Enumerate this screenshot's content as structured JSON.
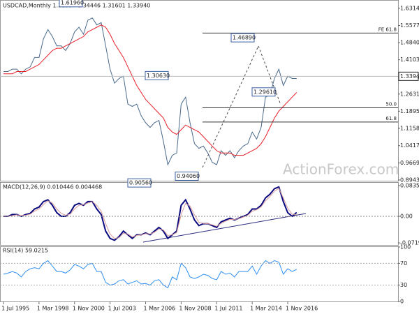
{
  "chart_data": [
    {
      "type": "line",
      "title": "USDCAD,Monthly 1.32357 1.34446 1.31601 1.33940",
      "ylim": [
        0.891,
        1.655
      ],
      "yticks": [
        {
          "value": 1.6314,
          "label": "1.63140"
        },
        {
          "value": 1.5577,
          "label": "1.55770"
        },
        {
          "value": 1.484,
          "label": "1.48400"
        },
        {
          "value": 1.4103,
          "label": "1.41030"
        },
        {
          "value": 1.3366,
          "label": "1.33660"
        },
        {
          "value": 1.2631,
          "label": "1.26310"
        },
        {
          "value": 1.1895,
          "label": "1.18950"
        },
        {
          "value": 1.1158,
          "label": "1.11580"
        },
        {
          "value": 1.0417,
          "label": "1.04170"
        },
        {
          "value": 0.9669,
          "label": "0.96690"
        },
        {
          "value": 0.8943,
          "label": "0.89430"
        }
      ],
      "series": [
        {
          "color": "#4a6a8c",
          "values": [
            1.36,
            1.36,
            1.37,
            1.37,
            1.35,
            1.37,
            1.38,
            1.42,
            1.42,
            1.5,
            1.54,
            1.51,
            1.47,
            1.47,
            1.45,
            1.48,
            1.53,
            1.55,
            1.52,
            1.58,
            1.59,
            1.56,
            1.57,
            1.47,
            1.37,
            1.31,
            1.33,
            1.34,
            1.22,
            1.21,
            1.22,
            1.17,
            1.14,
            1.12,
            1.14,
            1.15,
            1.06,
            0.96,
            1.0,
            1.01,
            1.22,
            1.25,
            1.14,
            1.05,
            1.03,
            1.04,
            1.01,
            0.97,
            0.96,
            1.02,
            1.0,
            1.02,
            0.99,
            1.02,
            1.04,
            1.05,
            1.1,
            1.07,
            1.12,
            1.25,
            1.26,
            1.33,
            1.37,
            1.3,
            1.34,
            1.33,
            1.33
          ]
        },
        {
          "color": "#e8202a",
          "values": [
            1.35,
            1.35,
            1.35,
            1.36,
            1.36,
            1.36,
            1.37,
            1.38,
            1.39,
            1.41,
            1.43,
            1.45,
            1.46,
            1.46,
            1.47,
            1.48,
            1.49,
            1.5,
            1.51,
            1.53,
            1.54,
            1.55,
            1.56,
            1.55,
            1.52,
            1.48,
            1.45,
            1.42,
            1.38,
            1.34,
            1.3,
            1.27,
            1.24,
            1.22,
            1.2,
            1.18,
            1.16,
            1.12,
            1.1,
            1.09,
            1.11,
            1.13,
            1.12,
            1.11,
            1.1,
            1.08,
            1.06,
            1.04,
            1.02,
            1.01,
            1.01,
            1.01,
            1.0,
            1.0,
            1.0,
            1.01,
            1.02,
            1.03,
            1.05,
            1.08,
            1.12,
            1.16,
            1.19,
            1.21,
            1.23,
            1.25,
            1.27
          ]
        }
      ],
      "annotations": [
        {
          "label": "1.61960",
          "value": 1.6196
        },
        {
          "label": "1.30630",
          "value": 1.3063
        },
        {
          "label": "0.90560",
          "value": 0.9056
        },
        {
          "label": "0.94060",
          "value": 0.9406
        },
        {
          "label": "1.46890",
          "value": 1.4689
        },
        {
          "label": "1.29610",
          "value": 1.2961
        }
      ],
      "levels": [
        {
          "name": "FE 61.8",
          "value": 1.525
        },
        {
          "name": "50.0",
          "value": 1.204
        },
        {
          "name": "61.8",
          "value": 1.143
        }
      ],
      "last_price": {
        "label": "1.33940",
        "value": 1.3394
      },
      "watermark": "ActionForex.com"
    },
    {
      "type": "line",
      "title": "MACD(12,26,9) 0.010446 0.004468",
      "ylim": [
        -0.0794,
        0.0909
      ],
      "yticks": [
        {
          "value": 0.083505,
          "label": "0.083505"
        },
        {
          "value": 0,
          "label": "0.00"
        },
        {
          "value": -0.07195,
          "label": "-0.07195"
        }
      ],
      "series": [
        {
          "color": "#0a0a80",
          "values": [
            0.0,
            0.0,
            0.005,
            0.005,
            0.0,
            0.005,
            0.008,
            0.02,
            0.025,
            0.04,
            0.045,
            0.03,
            0.01,
            0.0,
            0.0,
            0.01,
            0.03,
            0.035,
            0.03,
            0.04,
            0.04,
            0.02,
            0.005,
            -0.04,
            -0.06,
            -0.065,
            -0.055,
            -0.04,
            -0.05,
            -0.06,
            -0.05,
            -0.05,
            -0.045,
            -0.05,
            -0.04,
            -0.03,
            -0.04,
            -0.06,
            -0.05,
            -0.04,
            0.03,
            0.045,
            0.02,
            -0.01,
            -0.025,
            -0.02,
            -0.02,
            -0.025,
            -0.03,
            -0.015,
            -0.01,
            -0.005,
            -0.01,
            -0.005,
            0.0,
            0.005,
            0.02,
            0.02,
            0.03,
            0.05,
            0.06,
            0.075,
            0.08,
            0.04,
            0.01,
            0.0,
            0.010446
          ]
        },
        {
          "color": "#d89a9a",
          "values": [
            0.0,
            0.0,
            0.002,
            0.004,
            0.002,
            0.003,
            0.006,
            0.014,
            0.02,
            0.032,
            0.042,
            0.036,
            0.02,
            0.008,
            0.003,
            0.006,
            0.02,
            0.03,
            0.032,
            0.036,
            0.04,
            0.03,
            0.014,
            -0.02,
            -0.048,
            -0.06,
            -0.058,
            -0.046,
            -0.048,
            -0.056,
            -0.052,
            -0.05,
            -0.047,
            -0.048,
            -0.043,
            -0.034,
            -0.037,
            -0.052,
            -0.05,
            -0.044,
            0.005,
            0.035,
            0.028,
            0.004,
            -0.016,
            -0.019,
            -0.02,
            -0.023,
            -0.027,
            -0.019,
            -0.013,
            -0.008,
            -0.009,
            -0.006,
            -0.002,
            0.003,
            0.014,
            0.018,
            0.026,
            0.042,
            0.054,
            0.068,
            0.076,
            0.05,
            0.022,
            0.006,
            0.004468
          ]
        }
      ]
    },
    {
      "type": "line",
      "title": "RSI(14) 59.0215",
      "ylim": [
        0,
        100
      ],
      "yticks": [
        100,
        70,
        30,
        0
      ],
      "levels": [
        70,
        30
      ],
      "categories": [
        "1 Jul 1995",
        null,
        null,
        null,
        null,
        null,
        null,
        null,
        "1 Mar 1998",
        null,
        null,
        null,
        null,
        null,
        null,
        null,
        "1 Nov 2000",
        null,
        null,
        null,
        null,
        null,
        null,
        null,
        "1 Jul 2003",
        null,
        null,
        null,
        null,
        null,
        null,
        null,
        "1 Mar 2006",
        null,
        null,
        null,
        null,
        null,
        null,
        null,
        "1 Nov 2008",
        null,
        null,
        null,
        null,
        null,
        null,
        null,
        "1 Jul 2011",
        null,
        null,
        null,
        null,
        null,
        null,
        null,
        "1 Mar 2014",
        null,
        null,
        null,
        null,
        null,
        null,
        null,
        "1 Nov 2016",
        null,
        null
      ],
      "series": [
        {
          "color": "#2e8ff0",
          "values": [
            50,
            52,
            55,
            52,
            45,
            55,
            60,
            62,
            60,
            70,
            75,
            65,
            55,
            55,
            52,
            58,
            68,
            65,
            60,
            68,
            70,
            55,
            55,
            35,
            30,
            32,
            38,
            40,
            32,
            35,
            38,
            32,
            33,
            30,
            38,
            40,
            30,
            25,
            45,
            40,
            70,
            62,
            45,
            42,
            45,
            50,
            48,
            42,
            40,
            55,
            50,
            52,
            45,
            55,
            55,
            55,
            65,
            50,
            65,
            75,
            70,
            75,
            72,
            50,
            60,
            55,
            59.0215
          ]
        }
      ]
    }
  ]
}
